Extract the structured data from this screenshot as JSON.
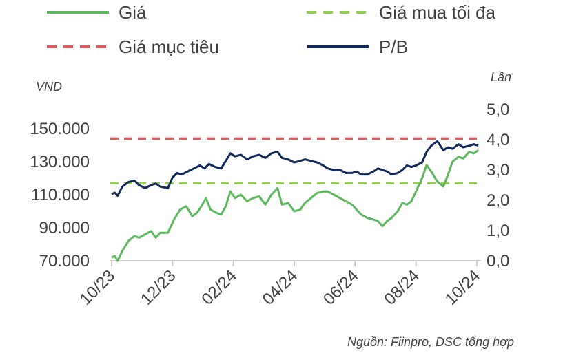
{
  "chart_data": {
    "type": "line",
    "legend": [
      {
        "key": "gia",
        "label": "Giá",
        "color": "#5cb85c",
        "style": "solid"
      },
      {
        "key": "gia_mua",
        "label": "Giá mua tối đa",
        "color": "#92d050",
        "style": "dashed"
      },
      {
        "key": "gia_muc_tieu",
        "label": "Giá mục tiêu",
        "color": "#e05a5a",
        "style": "dashed"
      },
      {
        "key": "pb",
        "label": "P/B",
        "color": "#0f2a5c",
        "style": "solid"
      }
    ],
    "legend_placement": "top",
    "y_left": {
      "label": "VND",
      "range": [
        70000,
        150000
      ],
      "ticks": [
        "70.000",
        "90.000",
        "110.000",
        "130.000",
        "150.000"
      ]
    },
    "y_right": {
      "label": "Lần",
      "range": [
        0,
        5
      ],
      "ticks": [
        "0,0",
        "1,0",
        "2,0",
        "3,0",
        "4,0",
        "5,0"
      ]
    },
    "x_ticks": [
      "10/23",
      "12/23",
      "02/24",
      "04/24",
      "06/24",
      "08/24",
      "10/24"
    ],
    "x_range_months": [
      "10/23",
      "10/24"
    ],
    "grid": false,
    "reference_lines": {
      "gia_muc_tieu": 144000,
      "gia_mua_toi_da": 117000
    },
    "series": [
      {
        "name": "Giá",
        "axis": "left",
        "x": [
          0.0,
          0.1,
          0.2,
          0.35,
          0.55,
          0.75,
          0.9,
          1.1,
          1.3,
          1.45,
          1.6,
          1.85,
          2.05,
          2.25,
          2.45,
          2.65,
          2.8,
          2.95,
          3.1,
          3.25,
          3.45,
          3.6,
          3.75,
          3.9,
          4.05,
          4.25,
          4.45,
          4.65,
          4.85,
          5.05,
          5.25,
          5.45,
          5.6,
          5.8,
          6.0,
          6.2,
          6.35,
          6.55,
          6.75,
          6.95,
          7.1,
          7.3,
          7.5,
          7.7,
          7.9,
          8.05,
          8.2,
          8.4,
          8.6,
          8.75,
          8.9,
          9.05,
          9.2,
          9.4,
          9.55,
          9.7,
          9.85,
          10.0,
          10.2,
          10.35,
          10.5,
          10.7,
          10.9,
          11.05,
          11.2,
          11.4,
          11.55,
          11.75,
          11.9,
          12.05
        ],
        "values": [
          72000,
          73000,
          70000,
          76000,
          82000,
          85000,
          84000,
          86000,
          88000,
          84000,
          87000,
          87000,
          95000,
          101000,
          103000,
          97000,
          99000,
          103000,
          108000,
          101000,
          99000,
          98000,
          103000,
          112000,
          108000,
          110000,
          106000,
          108000,
          109000,
          104000,
          110000,
          114000,
          104000,
          105000,
          100000,
          101000,
          105000,
          108000,
          111000,
          112000,
          112000,
          110000,
          108000,
          106000,
          104000,
          101000,
          98000,
          96000,
          95000,
          94000,
          91000,
          94000,
          96000,
          100000,
          105000,
          104000,
          106000,
          112000,
          120000,
          128000,
          124000,
          118000,
          115000,
          122000,
          130000,
          133000,
          132000,
          136000,
          135000,
          137000
        ]
      },
      {
        "name": "P/B",
        "axis": "right",
        "x": [
          0.0,
          0.1,
          0.2,
          0.35,
          0.55,
          0.75,
          0.9,
          1.1,
          1.3,
          1.45,
          1.6,
          1.85,
          2.0,
          2.15,
          2.3,
          2.5,
          2.7,
          2.9,
          3.05,
          3.2,
          3.4,
          3.6,
          3.75,
          3.9,
          4.05,
          4.25,
          4.45,
          4.65,
          4.85,
          5.05,
          5.25,
          5.45,
          5.6,
          5.8,
          6.0,
          6.2,
          6.35,
          6.55,
          6.75,
          6.95,
          7.1,
          7.3,
          7.5,
          7.7,
          7.9,
          8.05,
          8.2,
          8.4,
          8.6,
          8.75,
          8.9,
          9.05,
          9.2,
          9.4,
          9.55,
          9.7,
          9.85,
          10.0,
          10.2,
          10.35,
          10.5,
          10.7,
          10.9,
          11.05,
          11.2,
          11.4,
          11.55,
          11.75,
          11.9,
          12.05
        ],
        "values": [
          2.2,
          2.25,
          2.15,
          2.45,
          2.6,
          2.65,
          2.5,
          2.4,
          2.5,
          2.55,
          2.45,
          2.4,
          2.75,
          2.9,
          2.85,
          2.95,
          3.05,
          3.15,
          3.05,
          3.2,
          3.1,
          3.05,
          3.3,
          3.55,
          3.45,
          3.5,
          3.35,
          3.45,
          3.5,
          3.4,
          3.55,
          3.6,
          3.4,
          3.35,
          3.25,
          3.3,
          3.35,
          3.3,
          3.25,
          3.15,
          3.05,
          3.0,
          3.0,
          2.9,
          2.9,
          2.95,
          2.85,
          2.85,
          2.95,
          3.05,
          3.0,
          2.95,
          2.85,
          2.9,
          3.0,
          3.15,
          3.1,
          3.15,
          3.25,
          3.6,
          3.8,
          3.95,
          3.65,
          3.75,
          3.7,
          3.85,
          3.75,
          3.8,
          3.85,
          3.8
        ]
      }
    ],
    "source": "Nguồn: Fiinpro, DSC tổng hợp"
  }
}
